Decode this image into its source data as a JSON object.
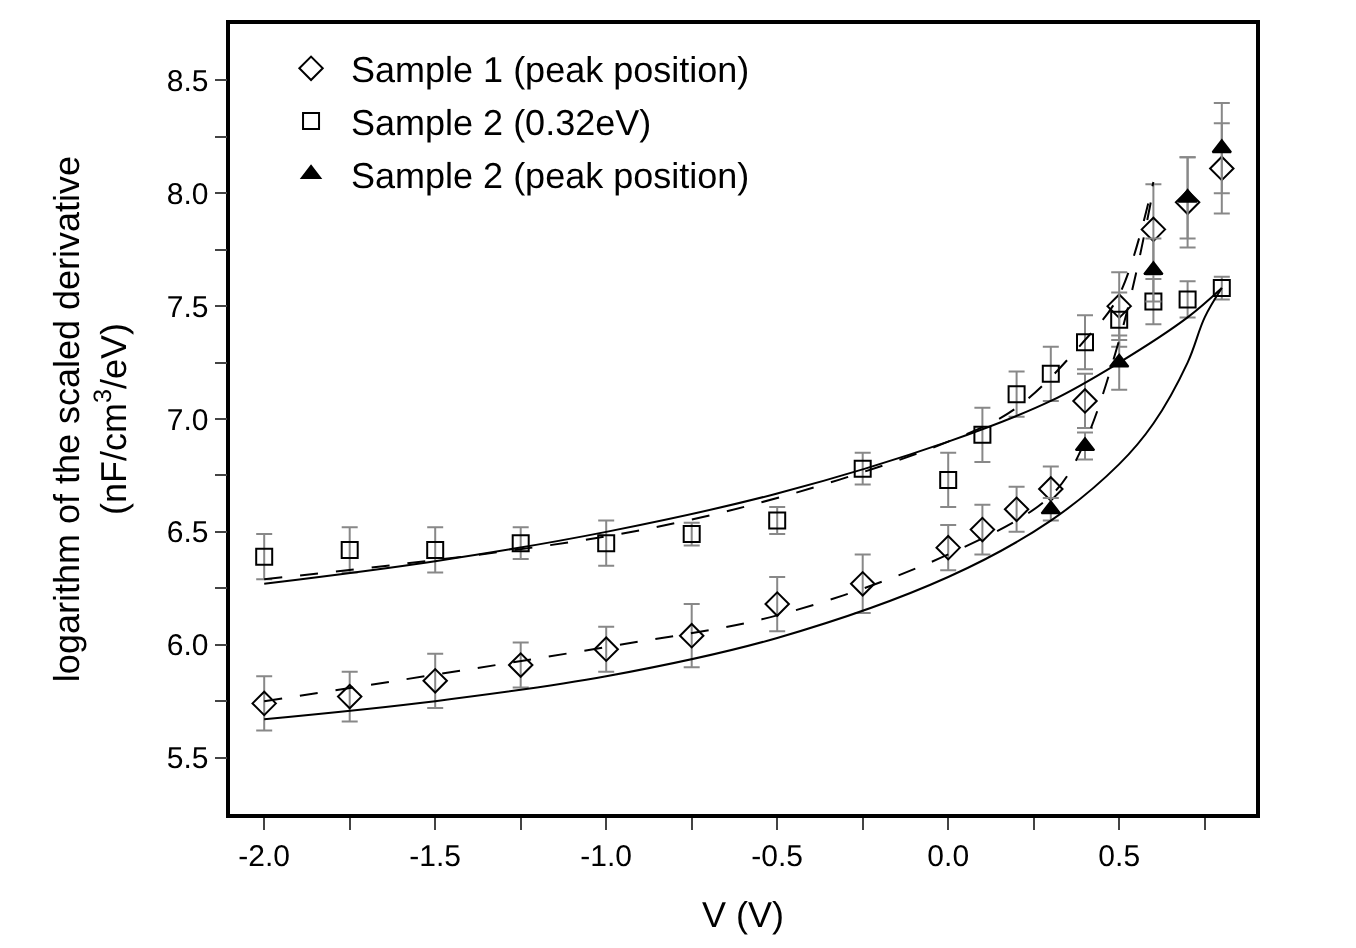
{
  "chart_data": {
    "type": "scatter",
    "xlabel": "V (V)",
    "ylabel": "logarithm of the scaled derivative\n(nF/cm$^{3}$/eV)",
    "xlim": [
      -2.1,
      0.9
    ],
    "ylim": [
      5.25,
      8.75
    ],
    "xticks": [
      {
        "value": -2.0,
        "label": "-2.0"
      },
      {
        "value": -1.75,
        "label": null
      },
      {
        "value": -1.5,
        "label": "-1.5"
      },
      {
        "value": -1.25,
        "label": null
      },
      {
        "value": -1.0,
        "label": "-1.0"
      },
      {
        "value": -0.75,
        "label": null
      },
      {
        "value": -0.5,
        "label": "-0.5"
      },
      {
        "value": -0.25,
        "label": null
      },
      {
        "value": 0.0,
        "label": "0.0"
      },
      {
        "value": 0.25,
        "label": null
      },
      {
        "value": 0.5,
        "label": "0.5"
      },
      {
        "value": 0.75,
        "label": null
      }
    ],
    "yticks": [
      {
        "value": 5.5,
        "label": "5.5"
      },
      {
        "value": 5.75,
        "label": null
      },
      {
        "value": 6.0,
        "label": "6.0"
      },
      {
        "value": 6.25,
        "label": null
      },
      {
        "value": 6.5,
        "label": "6.5"
      },
      {
        "value": 6.75,
        "label": null
      },
      {
        "value": 7.0,
        "label": "7.0"
      },
      {
        "value": 7.25,
        "label": null
      },
      {
        "value": 7.5,
        "label": "7.5"
      },
      {
        "value": 7.75,
        "label": null
      },
      {
        "value": 8.0,
        "label": "8.0"
      },
      {
        "value": 8.25,
        "label": null
      },
      {
        "value": 8.5,
        "label": "8.5"
      }
    ],
    "legend": "top left",
    "series": [
      {
        "name": "Sample 1 (peak position)",
        "marker": "diamond",
        "color": "#000000",
        "x": [
          -2,
          -1.75,
          -1.5,
          -1.25,
          -1,
          -0.75,
          -0.5,
          -0.25,
          0,
          0.1,
          0.2,
          0.3,
          0.4,
          0.5,
          0.6,
          0.7,
          0.8
        ],
        "values": [
          5.74,
          5.77,
          5.84,
          5.91,
          5.98,
          6.04,
          6.18,
          6.27,
          6.43,
          6.51,
          6.6,
          6.69,
          7.08,
          7.5,
          7.84,
          7.96,
          8.11
        ],
        "errors": [
          0.12,
          0.11,
          0.12,
          0.1,
          0.1,
          0.14,
          0.12,
          0.13,
          0.1,
          0.11,
          0.1,
          0.1,
          0.12,
          0.15,
          0.2,
          0.2,
          0.2
        ]
      },
      {
        "name": "Sample 2 (0.32eV)",
        "marker": "square",
        "color": "#000000",
        "x": [
          -2,
          -1.75,
          -1.5,
          -1.25,
          -1,
          -0.75,
          -0.5,
          -0.25,
          0,
          0.1,
          0.2,
          0.3,
          0.4,
          0.5,
          0.6,
          0.7,
          0.8
        ],
        "values": [
          6.39,
          6.42,
          6.42,
          6.45,
          6.45,
          6.49,
          6.55,
          6.78,
          6.73,
          6.93,
          7.11,
          7.2,
          7.34,
          7.44,
          7.52,
          7.53,
          7.58
        ],
        "errors": [
          0.1,
          0.1,
          0.1,
          0.07,
          0.1,
          0.05,
          0.06,
          0.07,
          0.12,
          0.12,
          0.1,
          0.12,
          0.12,
          0.12,
          0.1,
          0.08,
          0.05
        ]
      },
      {
        "name": "Sample 2 (peak position)",
        "marker": "triangle",
        "color": "#000000",
        "x": [
          0.3,
          0.4,
          0.5,
          0.6,
          0.7,
          0.8
        ],
        "values": [
          6.6,
          6.88,
          7.25,
          7.66,
          7.98,
          8.2
        ],
        "errors": [
          0.05,
          0.06,
          0.12,
          0.14,
          0.18,
          0.2
        ]
      },
      {
        "type": "line",
        "line_style": "solid",
        "color": "#000000",
        "x": [
          -2,
          -1.5,
          -1,
          -0.5,
          0,
          0.3,
          0.5,
          0.7,
          0.8
        ],
        "values": [
          6.27,
          6.37,
          6.5,
          6.67,
          6.9,
          7.08,
          7.25,
          7.45,
          7.58
        ]
      },
      {
        "type": "line",
        "line_style": "dashed",
        "color": "#000000",
        "x": [
          -2,
          -1,
          -0.5,
          0,
          0.2,
          0.4,
          0.5,
          0.6
        ],
        "values": [
          6.29,
          6.48,
          6.65,
          6.9,
          7.05,
          7.35,
          7.55,
          8.05
        ]
      },
      {
        "type": "line",
        "line_style": "solid",
        "color": "#000000",
        "x": [
          -2,
          -1.5,
          -1,
          -0.5,
          0,
          0.3,
          0.5,
          0.6,
          0.7,
          0.75,
          0.8
        ],
        "values": [
          5.67,
          5.75,
          5.86,
          6.03,
          6.3,
          6.55,
          6.8,
          6.98,
          7.25,
          7.45,
          7.58
        ]
      },
      {
        "type": "line",
        "line_style": "dashed",
        "color": "#000000",
        "x": [
          -2,
          -1,
          -0.5,
          0,
          0.3,
          0.4,
          0.5,
          0.55,
          0.6
        ],
        "values": [
          5.75,
          5.99,
          6.13,
          6.4,
          6.66,
          6.9,
          7.35,
          7.65,
          8.02
        ]
      }
    ]
  }
}
